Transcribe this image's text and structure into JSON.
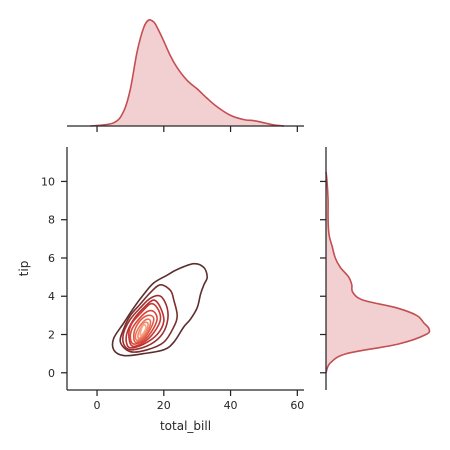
{
  "chart_data": {
    "type": "kde-joint",
    "xlabel": "total_bill",
    "ylabel": "tip",
    "xlim": [
      -9,
      62
    ],
    "ylim": [
      -0.9,
      11.8
    ],
    "x_ticks": [
      0,
      20,
      40,
      60
    ],
    "y_ticks": [
      0,
      2,
      4,
      6,
      8,
      10
    ],
    "colors": {
      "marginal_line": "#c44e52",
      "marginal_fill": "#f2d0d1",
      "contours": [
        "#5a2e2e",
        "#7a2e2e",
        "#9c2f2f",
        "#b8302f",
        "#c93a34",
        "#d6463a",
        "#e05a46",
        "#ea7358",
        "#f08c6e",
        "#f5a688"
      ]
    },
    "x_marginal_density": {
      "x": [
        -2,
        5,
        8,
        10,
        12,
        14,
        15.5,
        17,
        18,
        20,
        22,
        24,
        27,
        30,
        33,
        36,
        40,
        44,
        47,
        50,
        53,
        56
      ],
      "density": [
        0.0,
        0.03,
        0.14,
        0.35,
        0.7,
        0.93,
        1.0,
        0.98,
        0.93,
        0.8,
        0.66,
        0.55,
        0.43,
        0.35,
        0.26,
        0.18,
        0.1,
        0.06,
        0.05,
        0.03,
        0.01,
        0.0
      ]
    },
    "y_marginal_density": {
      "y": [
        0.0,
        0.5,
        1.0,
        1.5,
        2.0,
        2.3,
        2.6,
        3.0,
        3.4,
        3.8,
        4.2,
        4.6,
        5.0,
        5.5,
        6.0,
        6.6,
        7.2,
        8.0,
        9.0,
        10.0,
        10.5
      ],
      "density": [
        0.0,
        0.04,
        0.2,
        0.7,
        0.97,
        1.0,
        0.95,
        0.88,
        0.68,
        0.36,
        0.26,
        0.25,
        0.22,
        0.14,
        0.09,
        0.06,
        0.03,
        0.02,
        0.02,
        0.01,
        0.0
      ]
    },
    "contours": [
      {
        "level": 1,
        "points": [
          [
            8,
            0.9
          ],
          [
            14,
            1.0
          ],
          [
            20,
            1.2
          ],
          [
            23,
            1.6
          ],
          [
            26,
            2.4
          ],
          [
            28,
            2.8
          ],
          [
            30,
            3.4
          ],
          [
            31,
            4.1
          ],
          [
            32,
            4.6
          ],
          [
            33,
            5.0
          ],
          [
            32,
            5.5
          ],
          [
            29,
            5.7
          ],
          [
            24,
            5.4
          ],
          [
            21,
            5.1
          ],
          [
            17,
            4.7
          ],
          [
            14,
            4.1
          ],
          [
            11,
            3.4
          ],
          [
            8,
            2.6
          ],
          [
            5,
            1.8
          ],
          [
            5,
            1.2
          ]
        ]
      },
      {
        "level": 2,
        "points": [
          [
            10,
            1.1
          ],
          [
            15,
            1.2
          ],
          [
            20,
            1.6
          ],
          [
            23,
            2.4
          ],
          [
            24,
            3.0
          ],
          [
            23,
            3.8
          ],
          [
            22,
            4.3
          ],
          [
            19,
            4.6
          ],
          [
            16,
            4.2
          ],
          [
            13,
            3.6
          ],
          [
            10,
            3.0
          ],
          [
            8,
            2.3
          ],
          [
            7,
            1.6
          ]
        ]
      },
      {
        "level": 3,
        "points": [
          [
            10,
            1.2
          ],
          [
            15,
            1.4
          ],
          [
            19,
            1.9
          ],
          [
            21,
            2.6
          ],
          [
            21,
            3.4
          ],
          [
            19,
            4.0
          ],
          [
            16,
            3.9
          ],
          [
            13,
            3.4
          ],
          [
            10,
            2.8
          ],
          [
            8,
            2.1
          ],
          [
            8,
            1.5
          ]
        ]
      },
      {
        "level": 4,
        "points": [
          [
            10,
            1.3
          ],
          [
            14,
            1.5
          ],
          [
            18,
            2.0
          ],
          [
            20,
            2.7
          ],
          [
            19,
            3.4
          ],
          [
            17,
            3.8
          ],
          [
            14,
            3.4
          ],
          [
            11,
            2.8
          ],
          [
            9,
            2.1
          ],
          [
            8.8,
            1.6
          ]
        ]
      },
      {
        "level": 5,
        "points": [
          [
            10.5,
            1.4
          ],
          [
            14,
            1.6
          ],
          [
            17,
            2.1
          ],
          [
            19,
            2.8
          ],
          [
            18,
            3.4
          ],
          [
            16,
            3.6
          ],
          [
            13,
            3.1
          ],
          [
            10.5,
            2.6
          ],
          [
            9.5,
            2.0
          ]
        ]
      },
      {
        "level": 6,
        "points": [
          [
            11,
            1.5
          ],
          [
            14,
            1.7
          ],
          [
            16.5,
            2.2
          ],
          [
            18,
            2.8
          ],
          [
            17,
            3.2
          ],
          [
            15,
            3.2
          ],
          [
            12.5,
            2.8
          ],
          [
            10.5,
            2.3
          ],
          [
            10,
            1.8
          ]
        ]
      },
      {
        "level": 7,
        "points": [
          [
            11.5,
            1.6
          ],
          [
            14,
            1.8
          ],
          [
            16,
            2.3
          ],
          [
            17,
            2.8
          ],
          [
            16,
            3.0
          ],
          [
            14,
            2.9
          ],
          [
            12,
            2.5
          ],
          [
            11,
            2.0
          ]
        ]
      },
      {
        "level": 8,
        "points": [
          [
            12,
            1.7
          ],
          [
            14,
            1.9
          ],
          [
            15.5,
            2.3
          ],
          [
            16,
            2.7
          ],
          [
            15,
            2.8
          ],
          [
            13.5,
            2.6
          ],
          [
            12,
            2.2
          ],
          [
            11.5,
            1.9
          ]
        ]
      },
      {
        "level": 9,
        "points": [
          [
            12.5,
            1.8
          ],
          [
            14,
            2.0
          ],
          [
            15,
            2.3
          ],
          [
            15.2,
            2.6
          ],
          [
            14,
            2.6
          ],
          [
            13,
            2.3
          ],
          [
            12.3,
            2.0
          ]
        ]
      },
      {
        "level": 10,
        "points": [
          [
            13,
            1.95
          ],
          [
            14,
            2.1
          ],
          [
            14.7,
            2.4
          ],
          [
            14,
            2.5
          ],
          [
            13.3,
            2.3
          ]
        ]
      }
    ]
  }
}
